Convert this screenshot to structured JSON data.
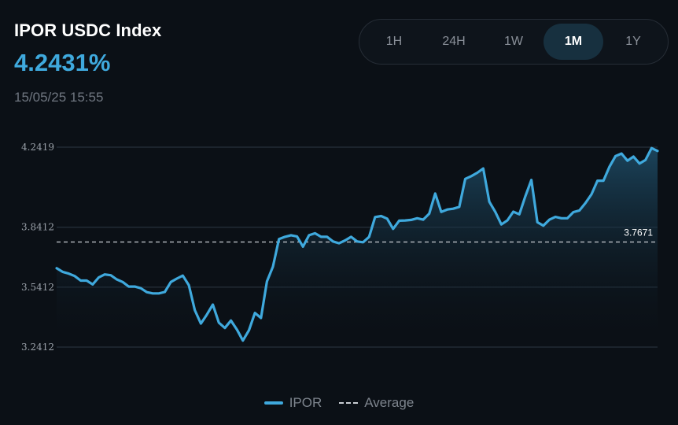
{
  "header": {
    "title": "IPOR USDC Index",
    "value": "4.2431%",
    "timestamp": "15/05/25 15:55"
  },
  "range_tabs": [
    {
      "label": "1H",
      "active": false
    },
    {
      "label": "24H",
      "active": false
    },
    {
      "label": "1W",
      "active": false
    },
    {
      "label": "1M",
      "active": true
    },
    {
      "label": "1Y",
      "active": false
    }
  ],
  "colors": {
    "background": "#0b1016",
    "line": "#3fa9dd",
    "average": "#c9ced4",
    "grid": "#2e3844",
    "tick_text": "#9aa1a9"
  },
  "chart_data": {
    "type": "area",
    "y_ticks": [
      "4.2419",
      "3.8412",
      "3.5412",
      "3.2412"
    ],
    "ylim": [
      3.2412,
      4.2419
    ],
    "grid": true,
    "legend_position": "bottom-center",
    "series": [
      {
        "name": "IPOR",
        "values": [
          3.636,
          3.618,
          3.609,
          3.597,
          3.574,
          3.574,
          3.555,
          3.59,
          3.605,
          3.601,
          3.58,
          3.567,
          3.544,
          3.544,
          3.536,
          3.516,
          3.51,
          3.51,
          3.517,
          3.567,
          3.584,
          3.599,
          3.551,
          3.426,
          3.359,
          3.404,
          3.454,
          3.363,
          3.337,
          3.374,
          3.329,
          3.274,
          3.325,
          3.412,
          3.387,
          3.57,
          3.644,
          3.782,
          3.793,
          3.801,
          3.795,
          3.744,
          3.801,
          3.811,
          3.793,
          3.793,
          3.77,
          3.761,
          3.775,
          3.793,
          3.77,
          3.766,
          3.793,
          3.892,
          3.897,
          3.884,
          3.833,
          3.874,
          3.875,
          3.878,
          3.886,
          3.879,
          3.909,
          4.01,
          3.918,
          3.93,
          3.934,
          3.943,
          4.083,
          4.097,
          4.114,
          4.135,
          3.969,
          3.918,
          3.855,
          3.875,
          3.919,
          3.906,
          3.996,
          4.078,
          3.866,
          3.849,
          3.879,
          3.893,
          3.886,
          3.886,
          3.917,
          3.925,
          3.962,
          4.006,
          4.074,
          4.074,
          4.144,
          4.197,
          4.21,
          4.174,
          4.195,
          4.16,
          4.178,
          4.237,
          4.223
        ]
      }
    ],
    "average": {
      "name": "Average",
      "value": 3.7671,
      "label": "3.7671"
    }
  }
}
